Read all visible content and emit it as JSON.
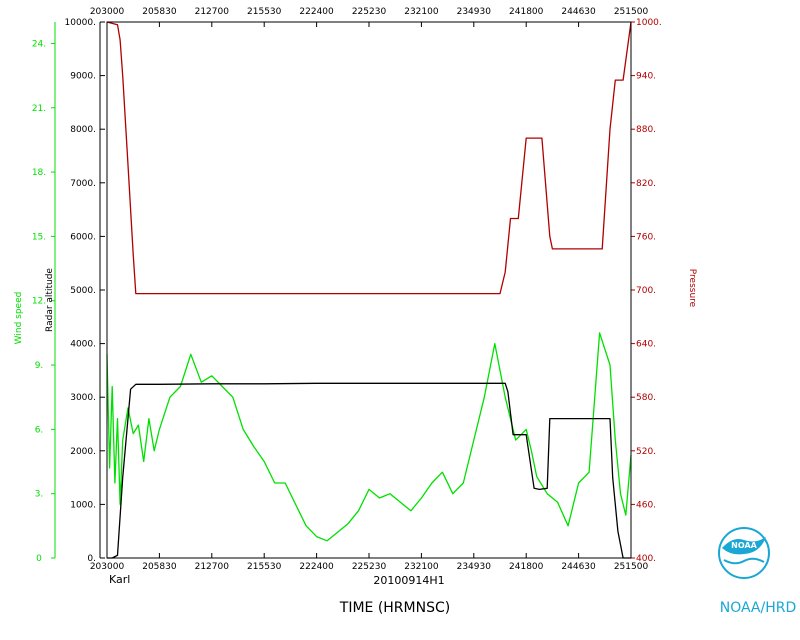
{
  "chart_data": {
    "type": "line",
    "colors": {
      "wind": "#00e000",
      "altitude": "#000000",
      "pressure": "#b00000",
      "logo": "#1aa7d6"
    },
    "x_ticks": [
      "203000",
      "205830",
      "212700",
      "215530",
      "222400",
      "225230",
      "232100",
      "234930",
      "241800",
      "244630",
      "251500"
    ],
    "x_ticks_bottom": [
      "203000",
      "205830",
      "212700",
      "215530",
      "222400",
      "225230",
      "232100",
      "234930",
      "241800",
      "244630",
      "251500"
    ],
    "xlabel": "TIME (HRMNSC)",
    "xlim": [
      0,
      10
    ],
    "wind_axis": {
      "label": "Wind speed",
      "ylim": [
        0,
        25
      ],
      "ticks": [
        "0",
        "3.",
        "6.",
        "9.",
        "12.",
        "15.",
        "18.",
        "21.",
        "24."
      ],
      "tick_values": [
        0,
        3,
        6,
        9,
        12,
        15,
        18,
        21,
        24
      ]
    },
    "altitude_axis": {
      "label": "Radar altitude",
      "ylim": [
        0,
        10000
      ],
      "ticks": [
        "0.",
        "1000.",
        "2000.",
        "3000.",
        "4000.",
        "5000.",
        "6000.",
        "7000.",
        "8000.",
        "9000.",
        "10000."
      ],
      "tick_values": [
        0,
        1000,
        2000,
        3000,
        4000,
        5000,
        6000,
        7000,
        8000,
        9000,
        10000
      ]
    },
    "pressure_axis": {
      "label": "Pressure",
      "ylim": [
        400,
        1000
      ],
      "ticks": [
        "400.",
        "460.",
        "520.",
        "580.",
        "640.",
        "700.",
        "760.",
        "820.",
        "880.",
        "940.",
        "1000."
      ],
      "tick_values": [
        400,
        460,
        520,
        580,
        640,
        700,
        760,
        820,
        880,
        940,
        1000
      ]
    },
    "series": [
      {
        "name": "Wind speed",
        "x": [
          0.0,
          0.05,
          0.1,
          0.15,
          0.2,
          0.25,
          0.3,
          0.4,
          0.5,
          0.6,
          0.7,
          0.8,
          0.9,
          1.0,
          1.2,
          1.4,
          1.6,
          1.8,
          2.0,
          2.2,
          2.4,
          2.6,
          2.8,
          3.0,
          3.2,
          3.4,
          3.6,
          3.8,
          4.0,
          4.2,
          4.4,
          4.6,
          4.8,
          5.0,
          5.2,
          5.4,
          5.6,
          5.8,
          6.0,
          6.2,
          6.4,
          6.6,
          6.8,
          7.0,
          7.2,
          7.4,
          7.6,
          7.8,
          8.0,
          8.1,
          8.2,
          8.4,
          8.6,
          8.8,
          9.0,
          9.2,
          9.4,
          9.6,
          9.7,
          9.8,
          9.9,
          10.0
        ],
        "values": [
          9.5,
          4.2,
          8.0,
          3.5,
          6.5,
          2.5,
          5.5,
          7.0,
          5.8,
          6.2,
          4.5,
          6.5,
          5.0,
          6.0,
          7.5,
          8.0,
          9.5,
          8.2,
          8.5,
          8.0,
          7.5,
          6.0,
          5.2,
          4.5,
          3.5,
          3.5,
          2.5,
          1.5,
          1.0,
          0.8,
          1.2,
          1.6,
          2.2,
          3.2,
          2.8,
          3.0,
          2.6,
          2.2,
          2.8,
          3.5,
          4.0,
          3.0,
          3.5,
          5.5,
          7.5,
          10.0,
          7.5,
          5.5,
          6.0,
          5.0,
          3.8,
          3.0,
          2.6,
          1.5,
          3.5,
          4.0,
          10.5,
          9.0,
          5.5,
          3.0,
          2.0,
          4.8
        ]
      },
      {
        "name": "Radar altitude",
        "x": [
          0.0,
          0.1,
          0.2,
          0.3,
          0.45,
          0.55,
          1.0,
          2.0,
          3.0,
          4.0,
          5.0,
          6.0,
          7.0,
          7.6,
          7.65,
          7.75,
          8.0,
          8.15,
          8.25,
          8.4,
          8.45,
          8.7,
          8.9,
          9.2,
          9.5,
          9.6,
          9.65,
          9.75,
          9.85,
          10.0
        ],
        "values": [
          0,
          0,
          50,
          1500,
          3150,
          3240,
          3240,
          3250,
          3250,
          3260,
          3260,
          3260,
          3260,
          3260,
          3100,
          2300,
          2300,
          1300,
          1280,
          1300,
          2600,
          2600,
          2600,
          2600,
          2600,
          2600,
          1500,
          500,
          0,
          0
        ]
      },
      {
        "name": "Pressure",
        "x": [
          0.0,
          0.2,
          0.25,
          0.3,
          0.4,
          0.5,
          0.55,
          1.0,
          2.0,
          3.0,
          4.0,
          5.0,
          6.0,
          7.0,
          7.5,
          7.6,
          7.7,
          7.85,
          8.0,
          8.15,
          8.3,
          8.45,
          8.5,
          8.6,
          9.0,
          9.3,
          9.45,
          9.6,
          9.7,
          9.85,
          10.0
        ],
        "values": [
          1000,
          997,
          980,
          940,
          840,
          740,
          696,
          696,
          696,
          696,
          696,
          696,
          696,
          696,
          696,
          720,
          780,
          780,
          870,
          870,
          870,
          760,
          746,
          746,
          746,
          746,
          746,
          880,
          935,
          935,
          1000
        ]
      }
    ]
  },
  "labels": {
    "storm": "Karl",
    "flight_id": "20100914H1",
    "logo_text": "NOAA/HRD",
    "logo_inner": "NOAA"
  }
}
